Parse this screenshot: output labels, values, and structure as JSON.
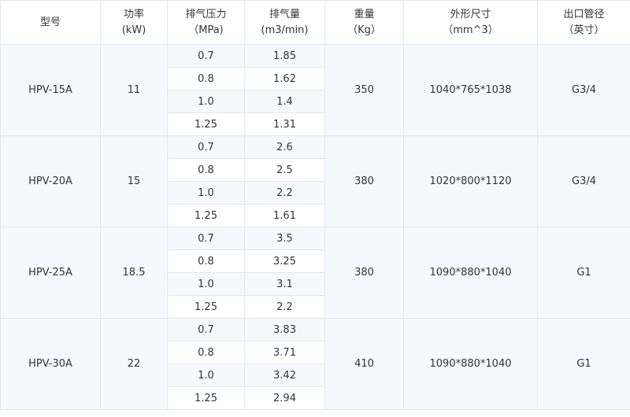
{
  "headers": [
    {
      "l1": "型号",
      "l2": ""
    },
    {
      "l1": "功率",
      "l2": "(kW)"
    },
    {
      "l1": "排气压力",
      "l2": "（MPa)"
    },
    {
      "l1": "排气量",
      "l2": "(m3/min)"
    },
    {
      "l1": "重量",
      "l2": "（Kg）"
    },
    {
      "l1": "外形尺寸",
      "l2": "（mm^3）"
    },
    {
      "l1": "出口管径",
      "l2": "（英寸）"
    }
  ],
  "models": [
    {
      "model": "HPV-15A",
      "power": "11",
      "weight": "350",
      "size": "1040*765*1038",
      "outlet": "G3/4",
      "rows": [
        {
          "p": "0.7",
          "q": "1.85"
        },
        {
          "p": "0.8",
          "q": "1.62"
        },
        {
          "p": "1.0",
          "q": "1.4"
        },
        {
          "p": "1.25",
          "q": "1.31"
        }
      ]
    },
    {
      "model": "HPV-20A",
      "power": "15",
      "weight": "380",
      "size": "1020*800*1120",
      "outlet": "G3/4",
      "rows": [
        {
          "p": "0.7",
          "q": "2.6"
        },
        {
          "p": "0.8",
          "q": "2.5"
        },
        {
          "p": "1.0",
          "q": "2.2"
        },
        {
          "p": "1.25",
          "q": "1.61"
        }
      ]
    },
    {
      "model": "HPV-25A",
      "power": "18.5",
      "weight": "380",
      "size": "1090*880*1040",
      "outlet": "G1",
      "rows": [
        {
          "p": "0.7",
          "q": "3.5"
        },
        {
          "p": "0.8",
          "q": "3.25"
        },
        {
          "p": "1.0",
          "q": "3.1"
        },
        {
          "p": "1.25",
          "q": "2.2"
        }
      ]
    },
    {
      "model": "HPV-30A",
      "power": "22",
      "weight": "410",
      "size": "1090*880*1040",
      "outlet": "G1",
      "rows": [
        {
          "p": "0.7",
          "q": "3.83"
        },
        {
          "p": "0.8",
          "q": "3.71"
        },
        {
          "p": "1.0",
          "q": "3.42"
        },
        {
          "p": "1.25",
          "q": "2.94"
        }
      ]
    }
  ]
}
